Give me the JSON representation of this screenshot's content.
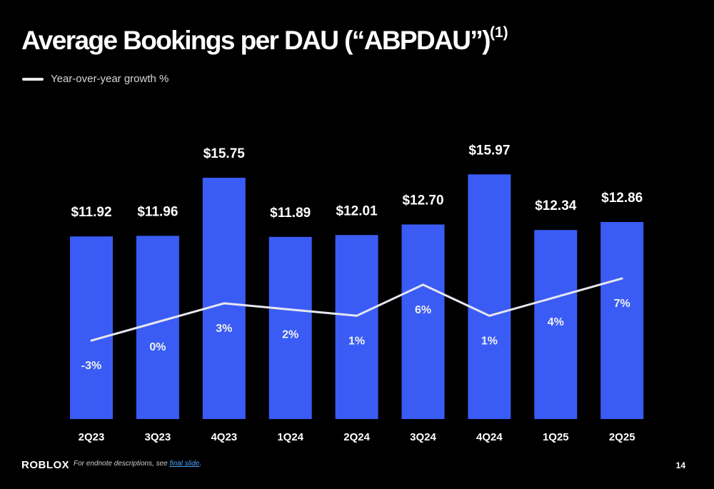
{
  "title": "Average Bookings per DAU (“ABPDAU”)",
  "title_superscript": "(1)",
  "legend_label": "Year-over-year growth %",
  "footer": {
    "logo": "RΟBLOX",
    "note_prefix": "For endnote descriptions, see ",
    "note_link": "final slide",
    "note_suffix": ".",
    "page_number": "14"
  },
  "colors": {
    "bar": "#3a5cf5",
    "line": "#e6e6ef",
    "background": "#000000"
  },
  "chart_data": {
    "type": "bar",
    "categories": [
      "2Q23",
      "3Q23",
      "4Q23",
      "1Q24",
      "2Q24",
      "3Q24",
      "4Q24",
      "1Q25",
      "2Q25"
    ],
    "series": [
      {
        "values": [
          11.92,
          11.96,
          15.75,
          11.89,
          12.01,
          12.7,
          15.97,
          12.34,
          12.86
        ],
        "labels": [
          "$11.92",
          "$11.96",
          "$15.75",
          "$11.89",
          "$12.01",
          "$12.70",
          "$15.97",
          "$12.34",
          "$12.86"
        ]
      },
      {
        "name": "Year-over-year growth %",
        "type": "line",
        "values": [
          -3,
          0,
          3,
          2,
          1,
          6,
          1,
          4,
          7
        ],
        "labels": [
          "-3%",
          "0%",
          "3%",
          "2%",
          "1%",
          "6%",
          "1%",
          "4%",
          "7%"
        ]
      }
    ],
    "legend": "top-left",
    "grid": false
  }
}
